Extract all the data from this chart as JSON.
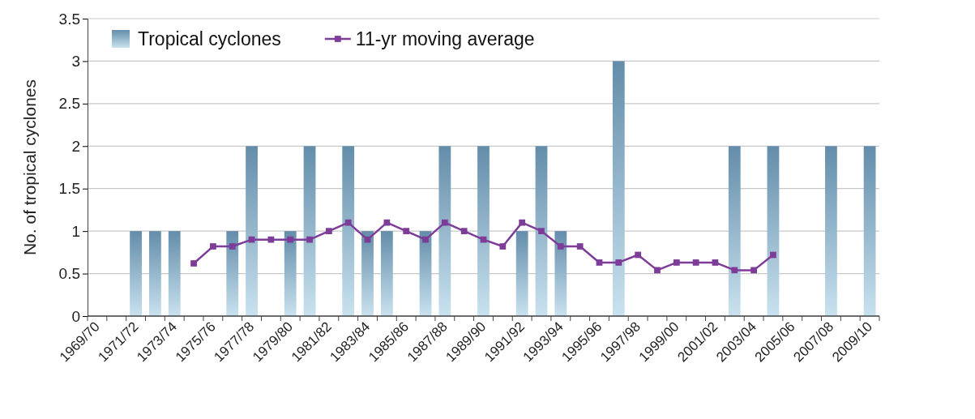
{
  "chart_data": {
    "type": "bar",
    "ylabel": "No. of tropical cyclones",
    "categories": [
      "1969/70",
      null,
      "1971/72",
      null,
      "1973/74",
      null,
      "1975/76",
      null,
      "1977/78",
      null,
      "1979/80",
      null,
      "1981/82",
      null,
      "1983/84",
      null,
      "1985/86",
      null,
      "1987/88",
      null,
      "1989/90",
      null,
      "1991/92",
      null,
      "1993/94",
      null,
      "1995/96",
      null,
      "1997/98",
      null,
      "1999/00",
      null,
      "2001/02",
      null,
      "2003/04",
      null,
      "2005/06",
      null,
      "2007/08",
      null,
      "2009/10"
    ],
    "series": [
      {
        "name": "Tropical cyclones",
        "color": "#7fa6c0",
        "values": [
          0,
          0,
          1,
          1,
          1,
          0,
          0,
          1,
          2,
          0,
          1,
          2,
          0,
          2,
          1,
          1,
          0,
          1,
          2,
          0,
          2,
          0,
          1,
          2,
          1,
          0,
          0,
          3,
          0,
          0,
          0,
          0,
          0,
          2,
          0,
          2,
          0,
          0,
          2,
          0,
          2
        ]
      },
      {
        "name": "11-yr moving average",
        "type": "line",
        "color": "#7d3c98",
        "marker": "square",
        "values": [
          null,
          null,
          null,
          null,
          null,
          0.62,
          0.82,
          0.82,
          0.9,
          0.9,
          0.9,
          0.9,
          1.0,
          1.1,
          0.9,
          1.1,
          1.0,
          0.9,
          1.1,
          1.0,
          0.9,
          0.82,
          1.1,
          1.0,
          0.82,
          0.82,
          0.63,
          0.63,
          0.72,
          0.54,
          0.63,
          0.63,
          0.63,
          0.54,
          0.54,
          0.72,
          null,
          null,
          null,
          null,
          null
        ]
      }
    ],
    "ylim": [
      0,
      3.5
    ],
    "yticks": [
      0,
      0.5,
      1,
      1.5,
      2,
      2.5,
      3,
      3.5
    ],
    "grid": "y",
    "legend": "top left"
  }
}
